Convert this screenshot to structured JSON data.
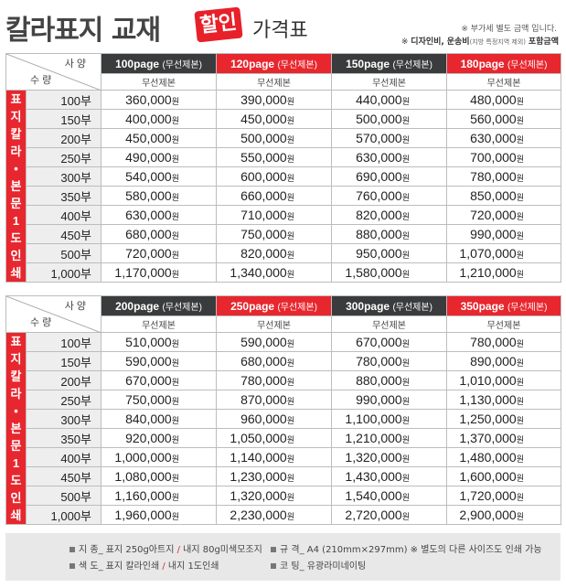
{
  "header": {
    "title": "칼라표지 교재",
    "badge": "할인",
    "subtitle": "가격표",
    "note1": "※ 부가세 별도 금액 입니다.",
    "note2_prefix": "※",
    "note2_a": "디자인비,",
    "note2_b": "운송비",
    "note2_c": "(지방 특정지역 제외)",
    "note2_d": "포함금액"
  },
  "labels": {
    "spec": "사 양",
    "qty": "수 량",
    "bind": "무선제본",
    "won": "원"
  },
  "side_label": [
    "표",
    "지",
    "칼",
    "라",
    "•",
    "본",
    "문",
    "1",
    "도",
    "인",
    "쇄"
  ],
  "quantities": [
    "100부",
    "150부",
    "200부",
    "250부",
    "300부",
    "350부",
    "400부",
    "450부",
    "500부",
    "1,000부"
  ],
  "tables": [
    {
      "pages": [
        {
          "label": "100page",
          "sub": "(무선제본)",
          "style": "dark"
        },
        {
          "label": "120page",
          "sub": "(무선제본)",
          "style": "red"
        },
        {
          "label": "150page",
          "sub": "(무선제본)",
          "style": "dark"
        },
        {
          "label": "180page",
          "sub": "(무선제본)",
          "style": "red"
        }
      ],
      "rows": [
        [
          "360,000",
          "390,000",
          "440,000",
          "480,000"
        ],
        [
          "400,000",
          "450,000",
          "500,000",
          "560,000"
        ],
        [
          "450,000",
          "500,000",
          "570,000",
          "630,000"
        ],
        [
          "490,000",
          "550,000",
          "630,000",
          "700,000"
        ],
        [
          "540,000",
          "600,000",
          "690,000",
          "780,000"
        ],
        [
          "580,000",
          "660,000",
          "760,000",
          "850,000"
        ],
        [
          "630,000",
          "710,000",
          "820,000",
          "720,000"
        ],
        [
          "680,000",
          "750,000",
          "880,000",
          "990,000"
        ],
        [
          "720,000",
          "820,000",
          "950,000",
          "1,070,000"
        ],
        [
          "1,170,000",
          "1,340,000",
          "1,580,000",
          "1,210,000"
        ]
      ]
    },
    {
      "pages": [
        {
          "label": "200page",
          "sub": "(무선제본)",
          "style": "dark"
        },
        {
          "label": "250page",
          "sub": "(무선제본)",
          "style": "red"
        },
        {
          "label": "300page",
          "sub": "(무선제본)",
          "style": "dark"
        },
        {
          "label": "350page",
          "sub": "(무선제본)",
          "style": "red"
        }
      ],
      "rows": [
        [
          "510,000",
          "590,000",
          "670,000",
          "780,000"
        ],
        [
          "590,000",
          "680,000",
          "780,000",
          "890,000"
        ],
        [
          "670,000",
          "780,000",
          "880,000",
          "1,010,000"
        ],
        [
          "750,000",
          "870,000",
          "990,000",
          "1,130,000"
        ],
        [
          "840,000",
          "960,000",
          "1,100,000",
          "1,250,000"
        ],
        [
          "920,000",
          "1,050,000",
          "1,210,000",
          "1,370,000"
        ],
        [
          "1,000,000",
          "1,140,000",
          "1,320,000",
          "1,480,000"
        ],
        [
          "1,080,000",
          "1,230,000",
          "1,430,000",
          "1,600,000"
        ],
        [
          "1,160,000",
          "1,320,000",
          "1,540,000",
          "1,720,000"
        ],
        [
          "1,960,000",
          "2,230,000",
          "2,720,000",
          "2,900,000"
        ]
      ]
    }
  ],
  "footer": {
    "paper_label": "지 종_",
    "paper_a": "표지 250g아트지",
    "paper_b": "내지 80g미색모조지",
    "color_label": "색 도_",
    "color_a": "표지 칼라인쇄",
    "color_b": "내지 1도인쇄",
    "size_label": "규 격_",
    "size_val": "A4 (210mm×297mm)",
    "size_note": "※ 별도의 다른 사이즈도 인쇄 가능",
    "coat_label": "코 팅_",
    "coat_val": "유광라미네이팅",
    "slash": "/"
  }
}
